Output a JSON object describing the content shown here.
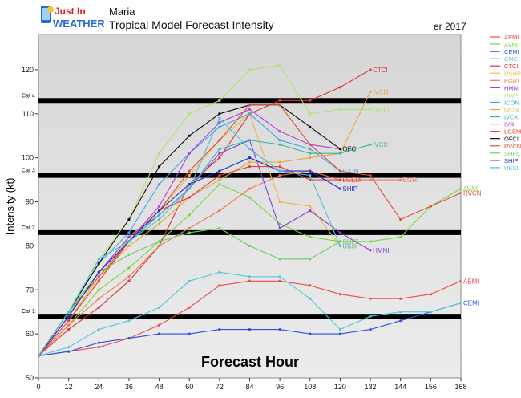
{
  "header": {
    "logo_line1": "Just In",
    "logo_line2": "WEATHER",
    "title": "Maria",
    "subtitle": "Tropical Model Forecast Intensity",
    "date_fragment": "er 2017"
  },
  "colors": {
    "logo_text": "#2a6bd1",
    "logo_red": "#d2232a",
    "plot_bg_upper": "#d9d9d9",
    "plot_bg_lower": "#e8e8e8",
    "category_line": "#000000"
  },
  "chart_data": {
    "type": "line",
    "title": "Maria",
    "subtitle": "Tropical Model Forecast Intensity",
    "xlabel": "Forecast Hour",
    "ylabel": "Intensity (kt)",
    "xlim": [
      0,
      168
    ],
    "ylim": [
      50,
      128
    ],
    "xticks": [
      0,
      12,
      24,
      36,
      48,
      60,
      72,
      84,
      96,
      108,
      120,
      132,
      144,
      156,
      168
    ],
    "yticks": [
      50,
      60,
      70,
      80,
      90,
      100,
      110,
      120
    ],
    "legend_position": "right",
    "category_lines": [
      {
        "label": "Cat 1",
        "value": 64
      },
      {
        "label": "Cat 2",
        "value": 83
      },
      {
        "label": "Cat 3",
        "value": 96
      },
      {
        "label": "Cat 4",
        "value": 113
      }
    ],
    "series": [
      {
        "name": "AEMI",
        "color": "#f04a4a",
        "x": [
          0,
          12,
          24,
          36,
          48,
          60,
          72,
          84,
          96,
          108,
          120,
          132,
          144,
          156,
          168
        ],
        "y": [
          55,
          56,
          57,
          59,
          62,
          66,
          71,
          72,
          72,
          71,
          69,
          68,
          68,
          69,
          72
        ]
      },
      {
        "name": "AVNI",
        "color": "#7bd63a",
        "x": [
          0,
          12,
          24,
          36,
          48,
          60,
          72,
          84,
          96,
          108,
          120,
          132,
          144,
          156,
          168
        ],
        "y": [
          55,
          62,
          70,
          75,
          81,
          87,
          94,
          91,
          85,
          82,
          81,
          81,
          82,
          89,
          93
        ]
      },
      {
        "name": "CEMI",
        "color": "#2b50e0",
        "x": [
          0,
          12,
          24,
          36,
          48,
          60,
          72,
          84,
          96,
          108,
          120,
          132,
          144,
          156,
          168
        ],
        "y": [
          55,
          56,
          58,
          59,
          60,
          60,
          61,
          61,
          61,
          60,
          60,
          61,
          63,
          65,
          67
        ]
      },
      {
        "name": "CMCI",
        "color": "#55c8d8",
        "x": [
          0,
          12,
          24,
          36,
          48,
          60,
          72,
          84,
          96,
          108,
          120,
          132,
          144,
          156,
          168
        ],
        "y": [
          55,
          57,
          61,
          63,
          66,
          72,
          74,
          73,
          73,
          68,
          61,
          64,
          65,
          65,
          67
        ]
      },
      {
        "name": "CTCI",
        "color": "#d9353a",
        "x": [
          0,
          12,
          24,
          36,
          48,
          60,
          72,
          84,
          96,
          108,
          120,
          132
        ],
        "y": [
          55,
          61,
          66,
          72,
          80,
          94,
          100,
          110,
          113,
          113,
          116,
          120
        ]
      },
      {
        "name": "DSHP",
        "color": "#f4b63c",
        "x": [
          0,
          12,
          24,
          36,
          48,
          60,
          72,
          84,
          96,
          108,
          120
        ],
        "y": [
          55,
          63,
          72,
          82,
          88,
          96,
          104,
          110,
          90,
          89,
          80
        ]
      },
      {
        "name": "EGRI",
        "color": "#f07a50",
        "x": [
          0,
          12,
          24,
          36,
          48,
          60,
          72,
          84,
          96,
          108,
          120,
          132,
          144
        ],
        "y": [
          55,
          62,
          68,
          73,
          80,
          84,
          88,
          93,
          96,
          97,
          95,
          95,
          95
        ]
      },
      {
        "name": "HMNI",
        "color": "#8a3cd6",
        "x": [
          0,
          12,
          24,
          36,
          48,
          60,
          72,
          84,
          96,
          108,
          120,
          132
        ],
        "y": [
          55,
          64,
          74,
          82,
          87,
          93,
          101,
          104,
          84,
          88,
          83,
          79
        ]
      },
      {
        "name": "HWFI",
        "color": "#aee66a",
        "x": [
          0,
          12,
          24,
          36,
          48,
          60,
          72,
          84,
          96,
          108,
          120,
          132
        ],
        "y": [
          55,
          64,
          77,
          86,
          101,
          110,
          113,
          120,
          121,
          110,
          111,
          111
        ]
      },
      {
        "name": "ICON",
        "color": "#3fa8e8",
        "x": [
          0,
          12,
          24,
          36,
          48,
          60,
          72,
          84,
          96,
          108,
          120
        ],
        "y": [
          55,
          65,
          76,
          83,
          94,
          101,
          107,
          110,
          104,
          102,
          97
        ]
      },
      {
        "name": "IVCN",
        "color": "#e6a83a",
        "x": [
          0,
          12,
          24,
          36,
          48,
          60,
          72,
          84,
          96,
          108,
          120,
          132
        ],
        "y": [
          55,
          63,
          73,
          80,
          85,
          91,
          95,
          99,
          99,
          100,
          101,
          115
        ]
      },
      {
        "name": "IVCX",
        "color": "#3ab8a8",
        "x": [
          0,
          12,
          24,
          36,
          48,
          60,
          72,
          84,
          96,
          108,
          120,
          132
        ],
        "y": [
          55,
          64,
          74,
          81,
          87,
          93,
          102,
          104,
          103,
          101,
          101,
          103
        ]
      },
      {
        "name": "IVRI",
        "color": "#b23fd6",
        "x": [
          0,
          12,
          24,
          36,
          48,
          60,
          72,
          84,
          96,
          108,
          120
        ],
        "y": [
          55,
          64,
          74,
          81,
          89,
          101,
          108,
          111,
          106,
          103,
          102
        ]
      },
      {
        "name": "LGEM",
        "color": "#e84040",
        "x": [
          0,
          12,
          24,
          36,
          48,
          60,
          72,
          84,
          96,
          108,
          120
        ],
        "y": [
          55,
          63,
          72,
          81,
          88,
          91,
          96,
          98,
          98,
          95,
          95
        ]
      },
      {
        "name": "OFCI",
        "color": "#111111",
        "x": [
          0,
          12,
          24,
          36,
          48,
          60,
          72,
          84,
          96,
          108,
          120
        ],
        "y": [
          55,
          65,
          76,
          86,
          98,
          105,
          110,
          112,
          112,
          107,
          102
        ]
      },
      {
        "name": "RVCN",
        "color": "#e0503a",
        "x": [
          0,
          12,
          24,
          36,
          48,
          60,
          72,
          84,
          96,
          108,
          120,
          132,
          144,
          156,
          168
        ],
        "y": [
          55,
          65,
          73,
          81,
          88,
          97,
          104,
          112,
          112,
          103,
          97,
          96,
          86,
          89,
          92
        ]
      },
      {
        "name": "SHF5",
        "color": "#6ad06a",
        "x": [
          0,
          12,
          24,
          36,
          48,
          60,
          72,
          84,
          96,
          108,
          120
        ],
        "y": [
          55,
          65,
          74,
          78,
          81,
          83,
          84,
          80,
          77,
          77,
          81
        ]
      },
      {
        "name": "SHIP",
        "color": "#2030c8",
        "x": [
          0,
          12,
          24,
          36,
          48,
          60,
          72,
          84,
          96,
          108,
          120
        ],
        "y": [
          55,
          64,
          74,
          81,
          88,
          94,
          97,
          100,
          97,
          97,
          93
        ]
      },
      {
        "name": "UKXI",
        "color": "#48c0e0",
        "x": [
          0,
          12,
          24,
          36,
          48,
          60,
          72,
          84,
          96,
          108,
          120
        ],
        "y": [
          55,
          65,
          77,
          81,
          86,
          93,
          109,
          102,
          97,
          96,
          80
        ]
      }
    ],
    "end_labels": [
      {
        "series": "CTCI"
      },
      {
        "series": "IVCN"
      },
      {
        "series": "HWFI"
      },
      {
        "series": "IVCX"
      },
      {
        "series": "OFCI"
      },
      {
        "series": "DSHP",
        "text": "DSHP"
      },
      {
        "series": "ICON"
      },
      {
        "series": "LGEM"
      },
      {
        "series": "EGRI"
      },
      {
        "series": "SHIP"
      },
      {
        "series": "SHF5"
      },
      {
        "series": "UKXI"
      },
      {
        "series": "HMNI"
      },
      {
        "series": "AVNI"
      },
      {
        "series": "RVCN"
      },
      {
        "series": "AEMI"
      },
      {
        "series": "CEMI"
      }
    ]
  }
}
